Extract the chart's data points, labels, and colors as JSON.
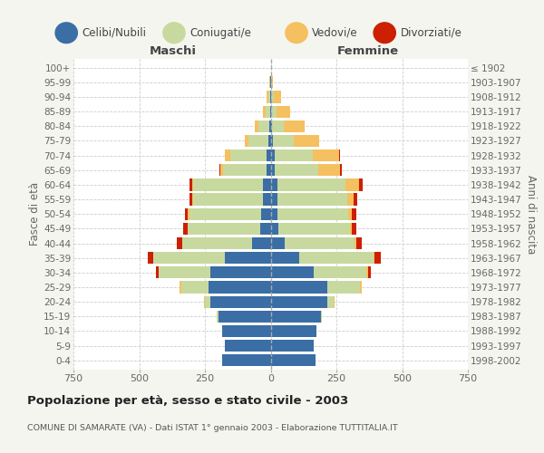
{
  "age_groups": [
    "0-4",
    "5-9",
    "10-14",
    "15-19",
    "20-24",
    "25-29",
    "30-34",
    "35-39",
    "40-44",
    "45-49",
    "50-54",
    "55-59",
    "60-64",
    "65-69",
    "70-74",
    "75-79",
    "80-84",
    "85-89",
    "90-94",
    "95-99",
    "100+"
  ],
  "birth_years": [
    "1998-2002",
    "1993-1997",
    "1988-1992",
    "1983-1987",
    "1978-1982",
    "1973-1977",
    "1968-1972",
    "1963-1967",
    "1958-1962",
    "1953-1957",
    "1948-1952",
    "1943-1947",
    "1938-1942",
    "1933-1937",
    "1928-1932",
    "1923-1927",
    "1918-1922",
    "1913-1917",
    "1908-1912",
    "1903-1907",
    "≤ 1902"
  ],
  "colors": {
    "celibi": "#3a6ea5",
    "coniugati": "#c8d9a0",
    "vedovi": "#f5c060",
    "divorziati": "#cc2000"
  },
  "maschi": {
    "celibi": [
      185,
      175,
      185,
      200,
      230,
      235,
      230,
      175,
      70,
      40,
      35,
      30,
      30,
      15,
      15,
      8,
      5,
      3,
      2,
      1,
      0
    ],
    "coniugati": [
      0,
      0,
      0,
      5,
      20,
      105,
      195,
      270,
      265,
      275,
      275,
      265,
      265,
      165,
      140,
      75,
      40,
      15,
      8,
      2,
      0
    ],
    "vedovi": [
      0,
      0,
      0,
      0,
      5,
      5,
      2,
      2,
      2,
      2,
      5,
      5,
      5,
      10,
      20,
      15,
      15,
      10,
      5,
      1,
      0
    ],
    "divorziati": [
      0,
      0,
      0,
      0,
      0,
      0,
      8,
      20,
      20,
      15,
      10,
      10,
      10,
      5,
      0,
      0,
      0,
      0,
      0,
      0,
      0
    ]
  },
  "femmine": {
    "celibi": [
      170,
      165,
      175,
      190,
      215,
      215,
      165,
      110,
      55,
      30,
      25,
      25,
      25,
      15,
      15,
      8,
      5,
      3,
      3,
      1,
      0
    ],
    "coniugati": [
      0,
      0,
      0,
      5,
      25,
      125,
      200,
      280,
      265,
      270,
      270,
      265,
      260,
      165,
      145,
      80,
      45,
      20,
      10,
      3,
      0
    ],
    "vedovi": [
      0,
      0,
      0,
      0,
      2,
      5,
      5,
      5,
      5,
      10,
      15,
      25,
      50,
      85,
      100,
      95,
      80,
      50,
      25,
      5,
      1
    ],
    "divorziati": [
      0,
      0,
      0,
      0,
      0,
      2,
      10,
      25,
      20,
      15,
      15,
      15,
      15,
      5,
      5,
      0,
      0,
      0,
      0,
      0,
      0
    ]
  },
  "xlim": 750,
  "title": "Popolazione per età, sesso e stato civile - 2003",
  "subtitle": "COMUNE DI SAMARATE (VA) - Dati ISTAT 1° gennaio 2003 - Elaborazione TUTTITALIA.IT",
  "ylabel_left": "Fasce di età",
  "ylabel_right": "Anni di nascita",
  "xlabel_maschi": "Maschi",
  "xlabel_femmine": "Femmine",
  "bg_color": "#f5f5f0",
  "plot_bg": "#ffffff"
}
